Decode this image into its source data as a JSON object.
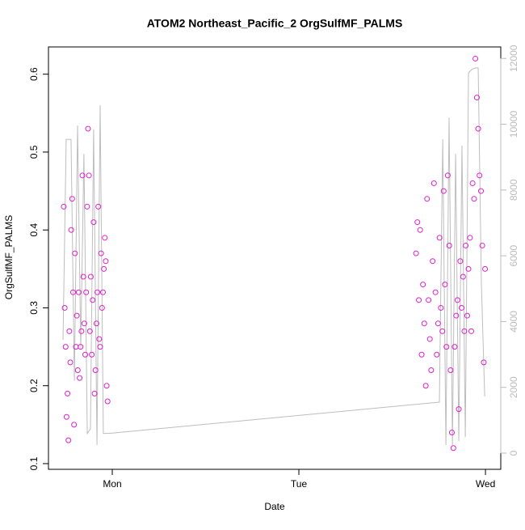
{
  "chart_data": {
    "type": "scatter",
    "title": "ATOM2 Northeast_Pacific_2 OrgSulfMF_PALMS",
    "x_label": "Date",
    "y_label": "OrgSulfMF_PALMS",
    "xlim": [
      -0.342,
      2.082
    ],
    "xticks": [
      {
        "value": 0,
        "label": "Mon"
      },
      {
        "value": 1,
        "label": "Tue"
      },
      {
        "value": 2,
        "label": "Wed"
      }
    ],
    "ylim": [
      0.0927,
      0.635
    ],
    "yticks": [
      0.1,
      0.2,
      0.3,
      0.4,
      0.5,
      0.6
    ],
    "y2lim": [
      -492,
      12350
    ],
    "y2ticks": [
      0,
      2000,
      4000,
      6000,
      8000,
      10000,
      12000
    ],
    "series": [
      {
        "type": "scatter",
        "color": "#e01ecc",
        "x": [
          -0.26,
          -0.255,
          -0.25,
          -0.245,
          -0.24,
          -0.235,
          -0.23,
          -0.225,
          -0.22,
          -0.215,
          -0.21,
          -0.205,
          -0.2,
          -0.195,
          -0.19,
          -0.185,
          -0.18,
          -0.175,
          -0.17,
          -0.165,
          -0.16,
          -0.155,
          -0.15,
          -0.145,
          -0.14,
          -0.135,
          -0.13,
          -0.125,
          -0.12,
          -0.115,
          -0.11,
          -0.105,
          -0.1,
          -0.095,
          -0.09,
          -0.085,
          -0.08,
          -0.075,
          -0.07,
          -0.065,
          -0.06,
          -0.055,
          -0.05,
          -0.045,
          -0.04,
          -0.035,
          -0.03,
          -0.025,
          1.628,
          1.635,
          1.643,
          1.65,
          1.658,
          1.665,
          1.672,
          1.68,
          1.687,
          1.695,
          1.702,
          1.709,
          1.717,
          1.724,
          1.732,
          1.739,
          1.746,
          1.754,
          1.761,
          1.769,
          1.776,
          1.783,
          1.791,
          1.798,
          1.806,
          1.813,
          1.82,
          1.828,
          1.835,
          1.843,
          1.85,
          1.857,
          1.865,
          1.872,
          1.88,
          1.887,
          1.894,
          1.902,
          1.909,
          1.917,
          1.924,
          1.931,
          1.939,
          1.946,
          1.954,
          1.961,
          1.968,
          1.976,
          1.983,
          1.991,
          1.998
        ],
        "values": [
          0.43,
          0.3,
          0.25,
          0.16,
          0.19,
          0.13,
          0.27,
          0.23,
          0.4,
          0.44,
          0.32,
          0.15,
          0.37,
          0.25,
          0.29,
          0.22,
          0.32,
          0.21,
          0.25,
          0.27,
          0.47,
          0.34,
          0.28,
          0.24,
          0.32,
          0.43,
          0.53,
          0.47,
          0.27,
          0.34,
          0.24,
          0.31,
          0.41,
          0.19,
          0.22,
          0.28,
          0.32,
          0.43,
          0.26,
          0.25,
          0.37,
          0.3,
          0.32,
          0.35,
          0.39,
          0.36,
          0.2,
          0.18,
          0.37,
          0.41,
          0.31,
          0.4,
          0.24,
          0.33,
          0.28,
          0.2,
          0.44,
          0.31,
          0.26,
          0.22,
          0.36,
          0.46,
          0.32,
          0.24,
          0.28,
          0.39,
          0.3,
          0.27,
          0.45,
          0.33,
          0.25,
          0.47,
          0.38,
          0.22,
          0.14,
          0.12,
          0.25,
          0.29,
          0.31,
          0.17,
          0.36,
          0.3,
          0.34,
          0.27,
          0.38,
          0.29,
          0.35,
          0.39,
          0.27,
          0.46,
          0.44,
          0.62,
          0.57,
          0.53,
          0.47,
          0.45,
          0.38,
          0.23,
          0.35
        ]
      },
      {
        "type": "line",
        "axis": "y2",
        "color": "#bdbdbd",
        "x": [
          -0.264,
          -0.247,
          -0.221,
          -0.203,
          -0.186,
          -0.169,
          -0.152,
          -0.134,
          -0.117,
          -0.1,
          -0.082,
          -0.065,
          -0.048,
          -0.03,
          0.0,
          1.753,
          1.771,
          1.788,
          1.805,
          1.823,
          1.84,
          1.857,
          1.874,
          1.892,
          1.909,
          1.926,
          1.944,
          1.961,
          1.978,
          1.996
        ],
        "values": [
          3440,
          9540,
          9540,
          2200,
          9960,
          3200,
          9100,
          600,
          740,
          9840,
          250,
          10580,
          600,
          600,
          610,
          1550,
          9540,
          250,
          10200,
          250,
          9100,
          370,
          9350,
          490,
          11560,
          11660,
          11710,
          11710,
          5170,
          1720
        ]
      }
    ]
  }
}
